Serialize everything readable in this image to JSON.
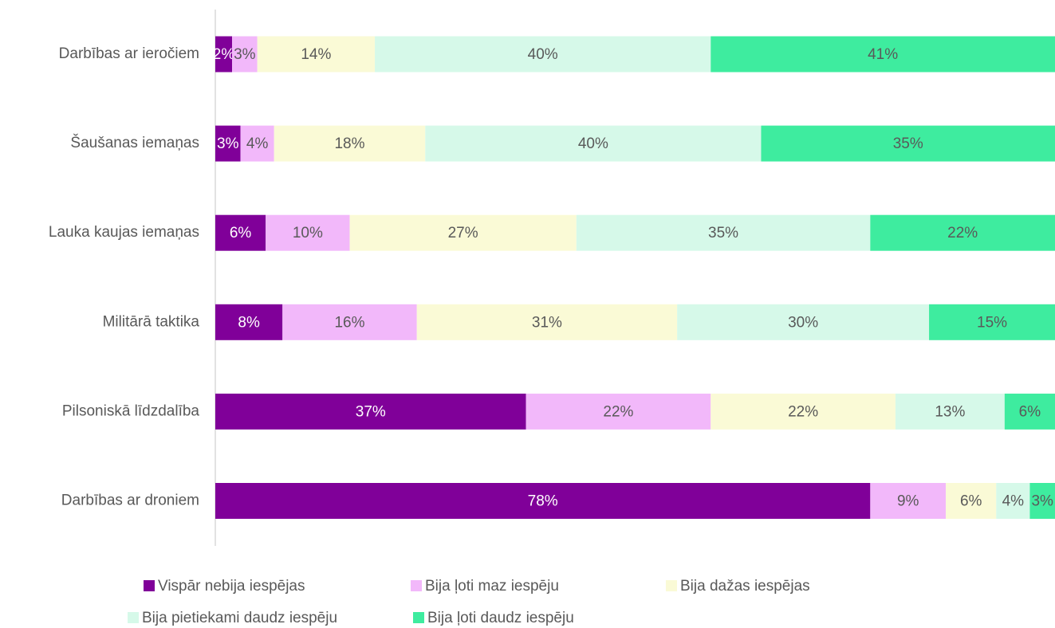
{
  "chart_data": {
    "type": "stacked_barh",
    "categories": [
      "Darbības ar ieročiem",
      "Šaušanas iemaņas",
      "Lauka kaujas iemaņas",
      "Militārā taktika",
      "Pilsoniskā līdzdalība",
      "Darbības ar droniem"
    ],
    "xlim": [
      0,
      100
    ],
    "series": [
      {
        "name": "Vispār nebija iespējas",
        "color": "#800099",
        "values": [
          2,
          3,
          6,
          8,
          37,
          78
        ],
        "value_labels": [
          "2%",
          "3%",
          "6%",
          "8%",
          "37%",
          "78%"
        ]
      },
      {
        "name": "Bija ļoti maz iespēju",
        "color": "#f2b8fa",
        "values": [
          3,
          4,
          10,
          16,
          22,
          9
        ],
        "value_labels": [
          "3%",
          "4%",
          "10%",
          "16%",
          "22%",
          "9%"
        ]
      },
      {
        "name": "Bija dažas iespējas",
        "color": "#fafad6",
        "values": [
          14,
          18,
          27,
          31,
          22,
          6
        ],
        "value_labels": [
          "14%",
          "18%",
          "27%",
          "31%",
          "22%",
          "6%"
        ]
      },
      {
        "name": "Bija pietiekami daudz iespēju",
        "color": "#d6f9e9",
        "values": [
          40,
          40,
          35,
          30,
          13,
          4
        ],
        "value_labels": [
          "40%",
          "40%",
          "35%",
          "30%",
          "13%",
          "4%"
        ]
      },
      {
        "name": "Bija ļoti daudz iespēju",
        "color": "#3eec9f",
        "values": [
          41,
          35,
          22,
          15,
          6,
          3
        ],
        "value_labels": [
          "41%",
          "35%",
          "22%",
          "15%",
          "6%",
          "3%"
        ]
      }
    ]
  }
}
